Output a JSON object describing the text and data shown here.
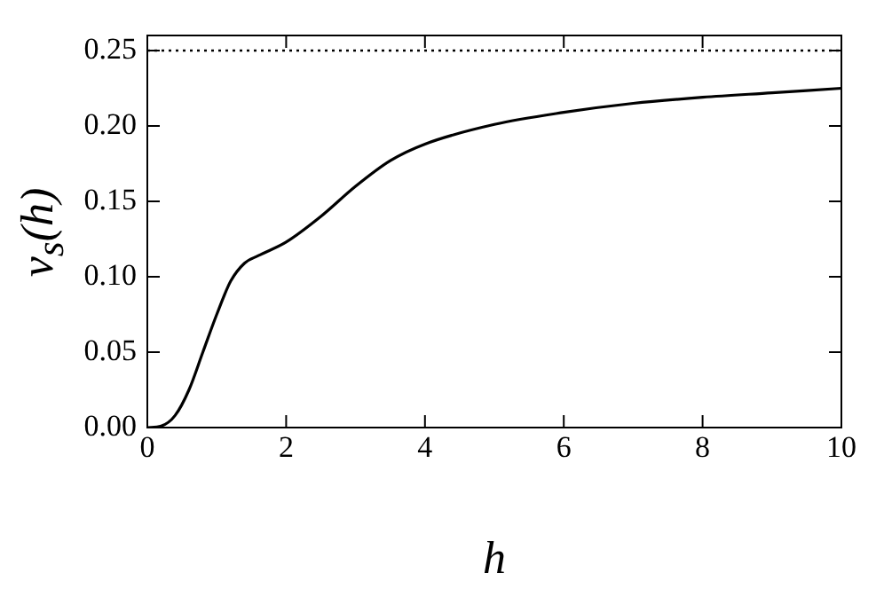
{
  "chart_data": {
    "type": "line",
    "xlabel": "h",
    "ylabel": "v$_{s}$(h)",
    "x": [
      0,
      0.2,
      0.4,
      0.6,
      0.8,
      1.0,
      1.2,
      1.4,
      1.6,
      2.0,
      2.5,
      3.0,
      3.5,
      4.0,
      5.0,
      6.0,
      7.0,
      8.0,
      9.0,
      10.0
    ],
    "series": [
      {
        "color": "#000000",
        "values": [
          0,
          0.001,
          0.008,
          0.025,
          0.05,
          0.075,
          0.097,
          0.109,
          0.114,
          0.123,
          0.14,
          0.16,
          0.177,
          0.188,
          0.201,
          0.209,
          0.215,
          0.219,
          0.222,
          0.225
        ]
      }
    ],
    "ref_lines": [
      {
        "axis": "y",
        "value": 0.25,
        "color": "#000000",
        "line_style": "dotted"
      }
    ],
    "xlim": [
      0,
      10
    ],
    "ylim": [
      0,
      0.26
    ],
    "xticks": [
      0,
      2,
      4,
      6,
      8,
      10
    ],
    "yticks": [
      {
        "value": 0,
        "label": "0.00"
      },
      {
        "value": 0.05,
        "label": "0.05"
      },
      {
        "value": 0.1,
        "label": "0.10"
      },
      {
        "value": 0.15,
        "label": "0.15"
      },
      {
        "value": 0.2,
        "label": "0.20"
      },
      {
        "value": 0.25,
        "label": "0.25"
      }
    ],
    "grid": false,
    "legend": false,
    "marker": "none",
    "line_style": "solid"
  }
}
